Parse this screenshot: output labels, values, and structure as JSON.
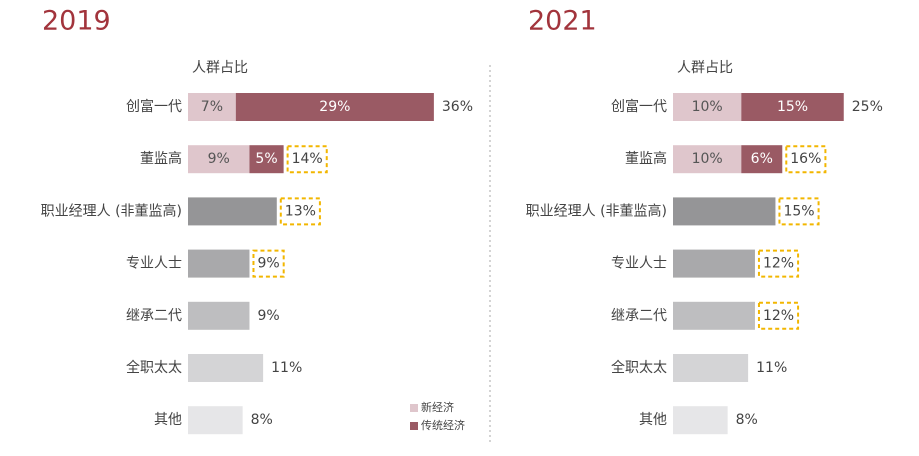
{
  "chart_data": [
    {
      "type": "bar",
      "title": "2019",
      "axis_label": "人群占比",
      "categories": [
        "创富一代",
        "董监高",
        "职业经理人 (非董监高)",
        "专业人士",
        "继承二代",
        "全职太太",
        "其他"
      ],
      "series": [
        {
          "values": [
            7,
            9,
            null,
            null,
            null,
            null,
            null
          ],
          "value_labels": [
            "7%",
            "9%",
            null,
            null,
            null,
            null,
            null
          ]
        },
        {
          "values": [
            29,
            5,
            null,
            null,
            null,
            null,
            null
          ],
          "value_labels": [
            "29%",
            "5%",
            null,
            null,
            null,
            null,
            null
          ]
        }
      ],
      "totals": [
        36,
        14,
        13,
        9,
        9,
        11,
        8
      ],
      "total_labels": [
        "36%",
        "14%",
        "13%",
        "9%",
        "9%",
        "11%",
        "8%"
      ],
      "bar_colors": [
        null,
        null,
        "#959597",
        "#a9a9ab",
        "#bebec0",
        "#d4d4d6",
        "#e6e6e8"
      ],
      "highlighted": [
        false,
        true,
        true,
        true,
        false,
        false,
        false
      ],
      "legend": true
    },
    {
      "type": "bar",
      "title": "2021",
      "axis_label": "人群占比",
      "categories": [
        "创富一代",
        "董监高",
        "职业经理人 (非董监高)",
        "专业人士",
        "继承二代",
        "全职太太",
        "其他"
      ],
      "series": [
        {
          "values": [
            10,
            10,
            null,
            null,
            null,
            null,
            null
          ],
          "value_labels": [
            "10%",
            "10%",
            null,
            null,
            null,
            null,
            null
          ]
        },
        {
          "values": [
            15,
            6,
            null,
            null,
            null,
            null,
            null
          ],
          "value_labels": [
            "15%",
            "6%",
            null,
            null,
            null,
            null,
            null
          ]
        }
      ],
      "totals": [
        25,
        16,
        15,
        12,
        12,
        11,
        8
      ],
      "total_labels": [
        "25%",
        "16%",
        "15%",
        "12%",
        "12%",
        "11%",
        "8%"
      ],
      "bar_colors": [
        null,
        null,
        "#959597",
        "#a9a9ab",
        "#bebec0",
        "#d4d4d6",
        "#e6e6e8"
      ],
      "highlighted": [
        false,
        true,
        true,
        true,
        true,
        false,
        false
      ],
      "legend": false
    }
  ],
  "legend": {
    "series": [
      {
        "name": "新经济",
        "color": "#dfc6cc"
      },
      {
        "name": "传统经济",
        "color": "#9a5a64"
      }
    ],
    "position": "bottom-right"
  }
}
